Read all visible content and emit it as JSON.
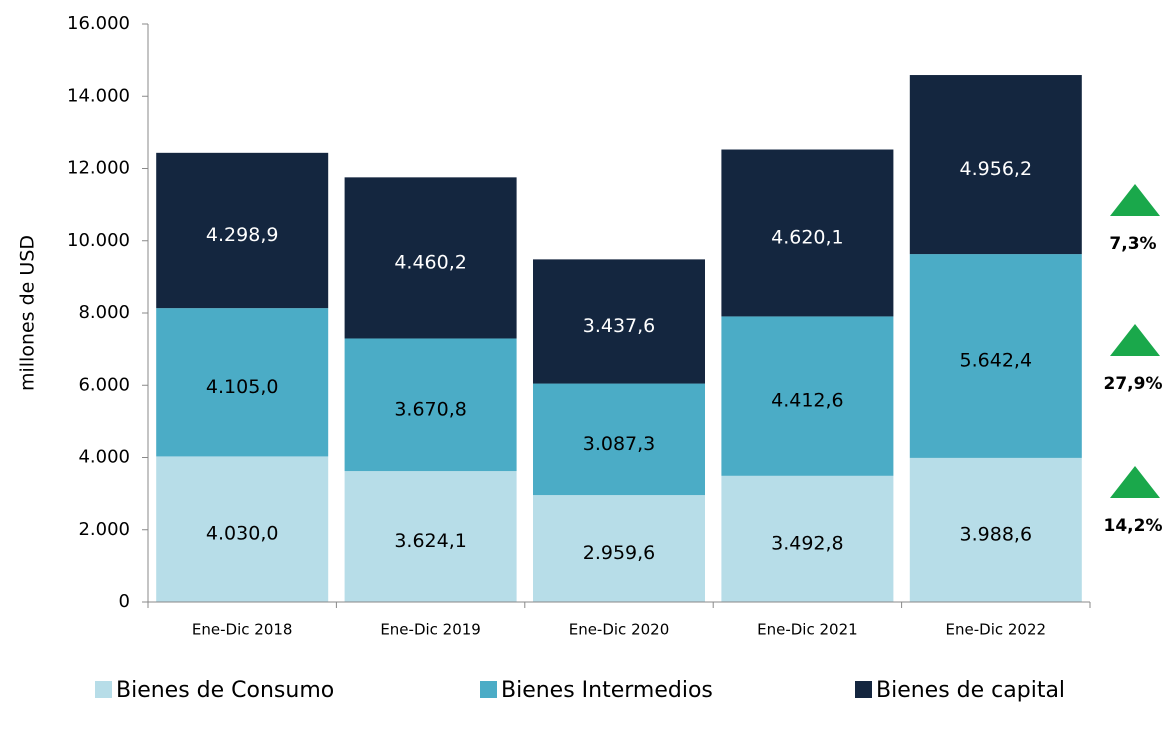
{
  "chart_data": {
    "type": "stacked_bar",
    "y_label": "millones de  USD",
    "categories": [
      "Ene-Dic 2018",
      "Ene-Dic 2019",
      "Ene-Dic 2020",
      "Ene-Dic 2021",
      "Ene-Dic 2022"
    ],
    "series": [
      {
        "name": "Bienes de Consumo",
        "color": "#b7dde8",
        "values": [
          4030.0,
          3624.1,
          2959.6,
          3492.8,
          3988.6
        ],
        "value_labels": [
          "4.030,0",
          "3.624,1",
          "2.959,6",
          "3.492,8",
          "3.988,6"
        ],
        "change_label": "14,2%"
      },
      {
        "name": "Bienes Intermedios",
        "color": "#4bacc6",
        "values": [
          4105.0,
          3670.8,
          3087.3,
          4412.6,
          5642.4
        ],
        "value_labels": [
          "4.105,0",
          "3.670,8",
          "3.087,3",
          "4.412,6",
          "5.642,4"
        ],
        "change_label": "27,9%"
      },
      {
        "name": "Bienes de capital",
        "color": "#14263f",
        "values": [
          4298.9,
          4460.2,
          3437.6,
          4620.1,
          4956.2
        ],
        "value_labels": [
          "4.298,9",
          "4.460,2",
          "3.437,6",
          "4.620,1",
          "4.956,2"
        ],
        "change_label": "7,3%"
      }
    ],
    "ylim": [
      0,
      16000
    ],
    "yticks": [
      0,
      {
        "value": 2000,
        "label": "2.000"
      },
      {
        "value": 4000,
        "label": "4.000"
      },
      {
        "value": 6000,
        "label": "6.000"
      },
      {
        "value": 8000,
        "label": "8.000"
      },
      {
        "value": 10000,
        "label": "10.000"
      },
      {
        "value": 12000,
        "label": "12.000"
      },
      {
        "value": 14000,
        "label": "14.000"
      },
      {
        "value": 16000,
        "label": "16.000"
      }
    ],
    "legend": "bottom"
  }
}
